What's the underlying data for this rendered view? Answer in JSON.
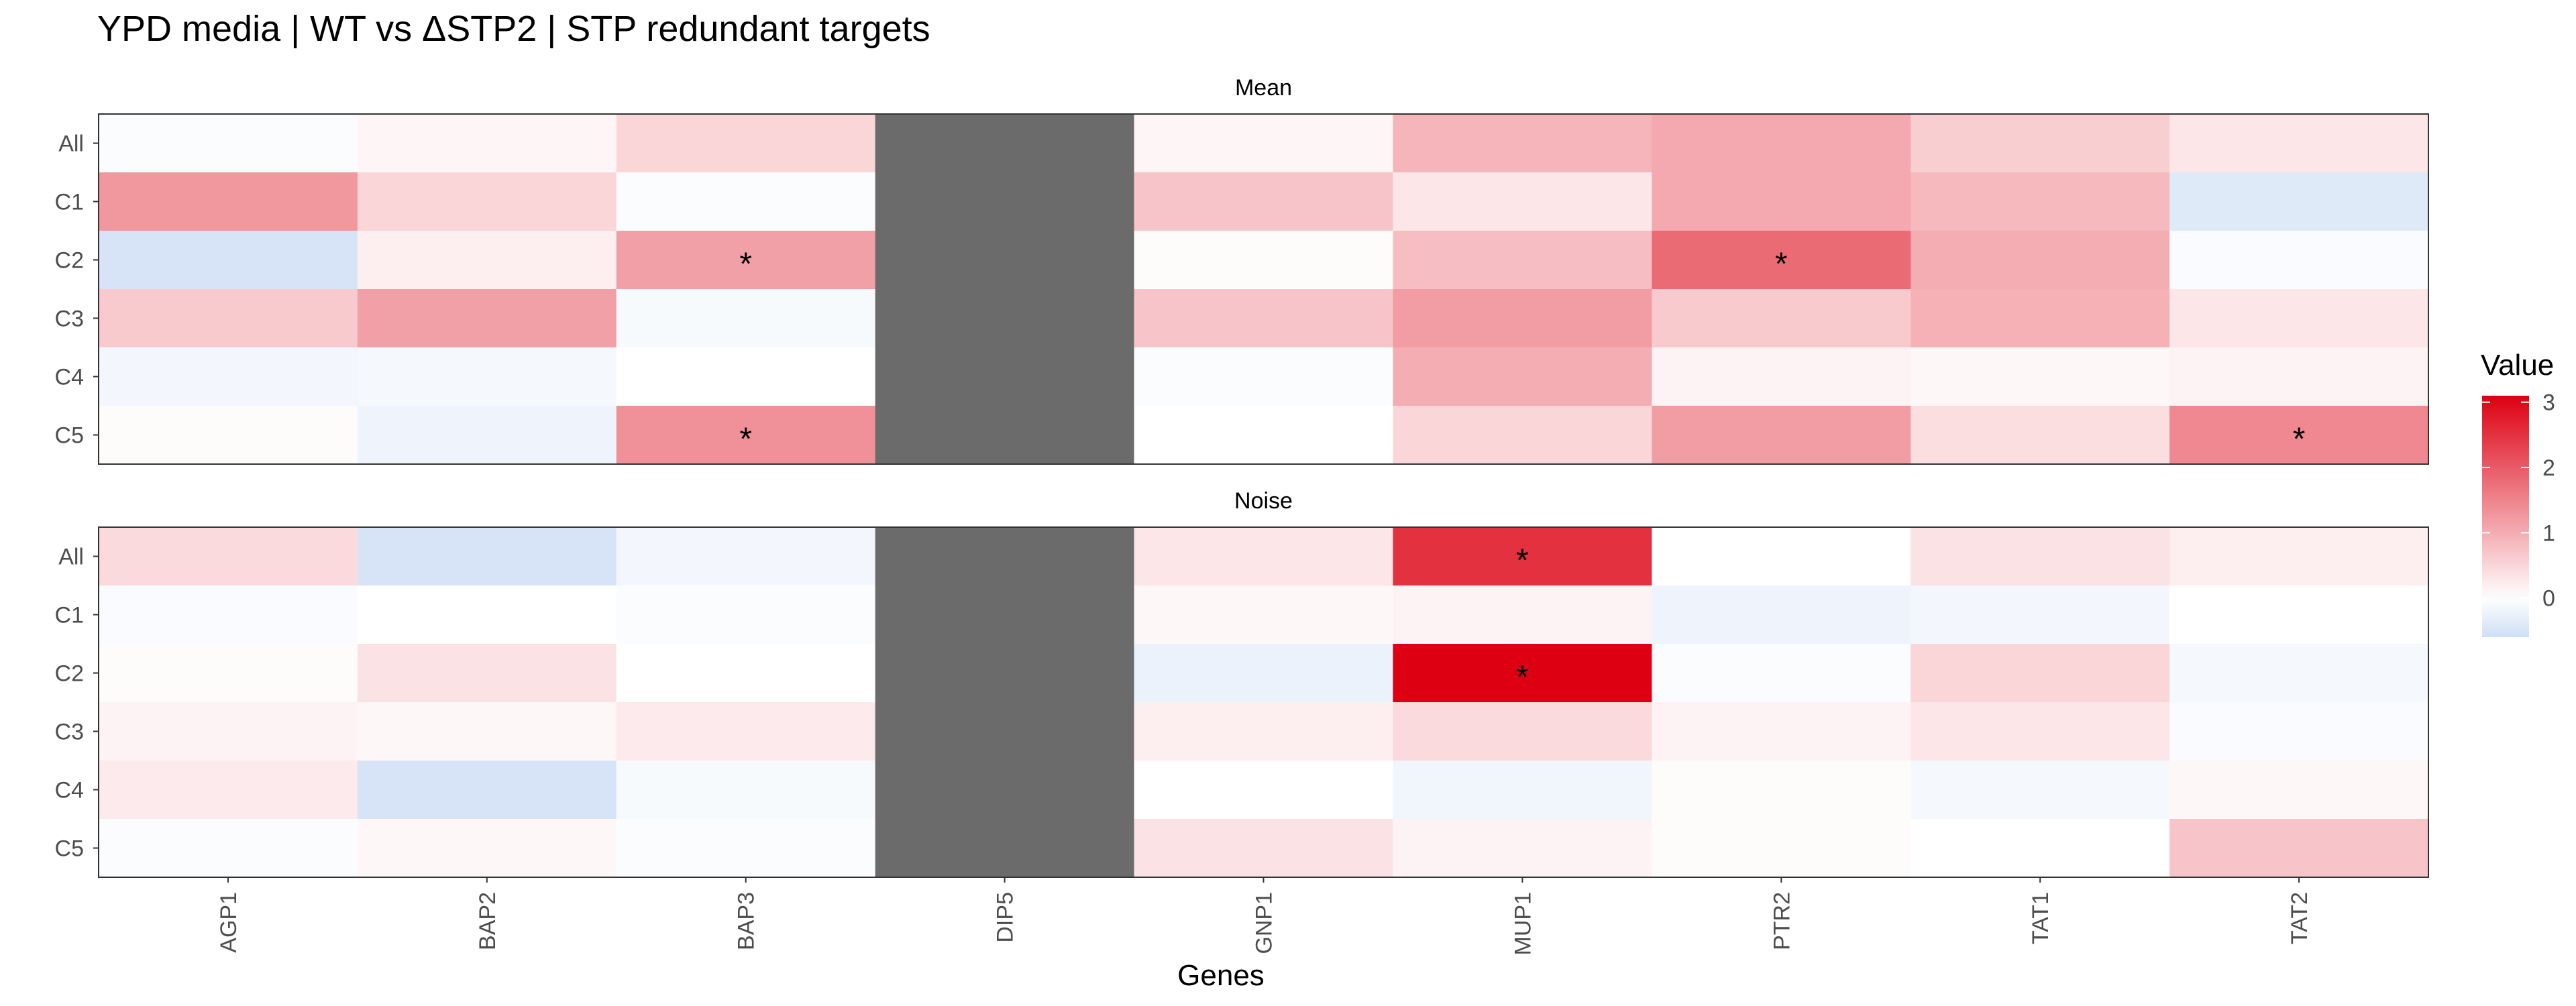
{
  "chart_data": {
    "type": "heatmap",
    "title": "YPD media | WT vs ΔSTP2 | STP redundant targets",
    "xlabel": "Genes",
    "x": [
      "AGP1",
      "BAP2",
      "BAP3",
      "DIP5",
      "GNP1",
      "MUP1",
      "PTR2",
      "TAT1",
      "TAT2"
    ],
    "y": [
      "All",
      "C1",
      "C2",
      "C3",
      "C4",
      "C5"
    ],
    "legend": {
      "title": "Value",
      "ticks": [
        0,
        1,
        2,
        3
      ],
      "range": [
        -0.6,
        3.1
      ],
      "placement": "right"
    },
    "colors": {
      "low": "#cfdff5",
      "mid": "#ffffff",
      "high": "#dd0012",
      "na": "#6b6b6b"
    },
    "panels": [
      {
        "name": "Mean",
        "values": [
          [
            -0.05,
            0.12,
            0.5,
            null,
            0.12,
            0.9,
            1.05,
            0.6,
            0.3
          ],
          [
            1.25,
            0.5,
            -0.05,
            null,
            0.7,
            0.3,
            1.05,
            0.85,
            -0.4
          ],
          [
            -0.5,
            0.2,
            1.15,
            null,
            0.05,
            0.8,
            1.8,
            1.0,
            -0.08
          ],
          [
            0.65,
            1.15,
            -0.1,
            null,
            0.7,
            1.2,
            0.65,
            0.95,
            0.3
          ],
          [
            -0.15,
            -0.12,
            0.0,
            null,
            -0.05,
            1.0,
            0.15,
            0.1,
            0.15
          ],
          [
            0.05,
            -0.2,
            1.35,
            null,
            0.0,
            0.5,
            1.2,
            0.4,
            1.45
          ]
        ],
        "significant": [
          [
            2,
            2
          ],
          [
            2,
            6
          ],
          [
            5,
            2
          ],
          [
            5,
            8
          ]
        ]
      },
      {
        "name": "Noise",
        "values": [
          [
            0.45,
            -0.5,
            -0.15,
            null,
            0.3,
            2.5,
            0.0,
            0.35,
            0.2
          ],
          [
            -0.08,
            0.0,
            -0.05,
            null,
            0.1,
            0.15,
            -0.2,
            -0.15,
            0.0
          ],
          [
            0.05,
            0.35,
            0.0,
            null,
            -0.25,
            3.1,
            -0.05,
            0.5,
            -0.12
          ],
          [
            0.15,
            0.1,
            0.25,
            null,
            0.2,
            0.45,
            0.15,
            0.3,
            -0.08
          ],
          [
            0.25,
            -0.5,
            -0.1,
            null,
            0.0,
            -0.18,
            0.05,
            -0.12,
            0.1
          ],
          [
            -0.05,
            0.1,
            -0.05,
            null,
            0.35,
            0.15,
            0.05,
            0.0,
            0.7
          ]
        ],
        "significant": [
          [
            0,
            5
          ],
          [
            2,
            5
          ]
        ]
      }
    ],
    "significance_marker": "*"
  }
}
